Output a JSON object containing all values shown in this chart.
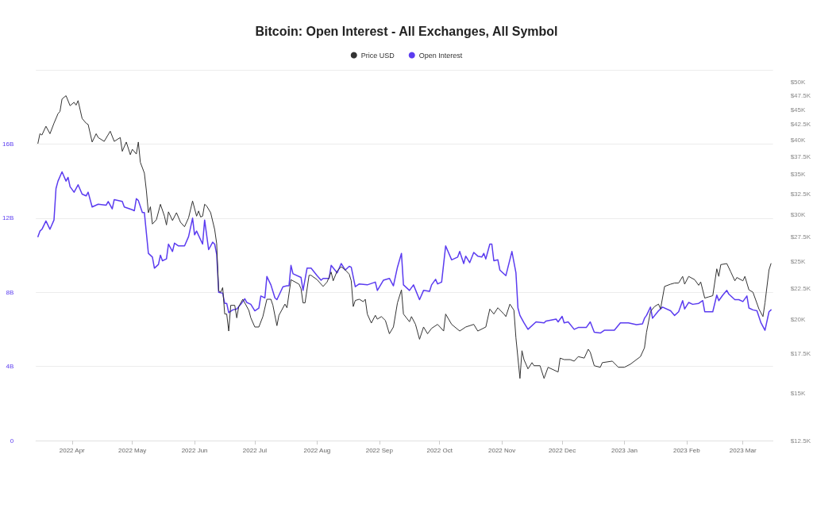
{
  "chart_data": {
    "type": "line",
    "title": "Bitcoin: Open Interest - All Exchanges, All Symbol",
    "legend": "top",
    "grid": "y",
    "log": "y2",
    "marker": "none",
    "line_style": "solid",
    "xlim": [
      "2022-03-14",
      "2023-03-16"
    ],
    "xticks": [
      {
        "value": "2022-04-01",
        "label": "2022 Apr"
      },
      {
        "value": "2022-05-01",
        "label": "2022 May"
      },
      {
        "value": "2022-06-01",
        "label": "2022 Jun"
      },
      {
        "value": "2022-07-01",
        "label": "2022 Jul"
      },
      {
        "value": "2022-08-01",
        "label": "2022 Aug"
      },
      {
        "value": "2022-09-01",
        "label": "2022 Sep"
      },
      {
        "value": "2022-10-01",
        "label": "2022 Oct"
      },
      {
        "value": "2022-11-01",
        "label": "2022 Nov"
      },
      {
        "value": "2022-12-01",
        "label": "2022 Dec"
      },
      {
        "value": "2023-01-01",
        "label": "2023 Jan"
      },
      {
        "value": "2023-02-01",
        "label": "2023 Feb"
      },
      {
        "value": "2023-03-01",
        "label": "2023 Mar"
      }
    ],
    "ylim": [
      0,
      20
    ],
    "yticks": [
      0,
      {
        "value": 4,
        "label": "4B"
      },
      {
        "value": 8,
        "label": "8B"
      },
      {
        "value": 12,
        "label": "12B"
      },
      {
        "value": 16,
        "label": "16B"
      },
      {
        "value": 20,
        "label": null
      }
    ],
    "y2lim": [
      12500,
      52500
    ],
    "y2ticks": [
      {
        "value": 12500,
        "label": "$12.5K"
      },
      {
        "value": 15000,
        "label": "$15K"
      },
      {
        "value": 17500,
        "label": "$17.5K"
      },
      {
        "value": 20000,
        "label": "$20K"
      },
      {
        "value": 22500,
        "label": "$22.5K"
      },
      {
        "value": 25000,
        "label": "$25K"
      },
      {
        "value": 27500,
        "label": "$27.5K"
      },
      {
        "value": 30000,
        "label": "$30K"
      },
      {
        "value": 32500,
        "label": "$32.5K"
      },
      {
        "value": 35000,
        "label": "$35K"
      },
      {
        "value": 37500,
        "label": "$37.5K"
      },
      {
        "value": 40000,
        "label": "$40K"
      },
      {
        "value": 42500,
        "label": "$42.5K"
      },
      {
        "value": 45000,
        "label": "$45K"
      },
      {
        "value": 47500,
        "label": "$47.5K"
      },
      {
        "value": 50000,
        "label": "$50K"
      }
    ],
    "series": [
      {
        "name": "Price USD",
        "color": "#333333",
        "axis": "y2",
        "x": [
          "2022-03-15",
          "2022-03-16",
          "2022-03-17",
          "2022-03-19",
          "2022-03-21",
          "2022-03-23",
          "2022-03-25",
          "2022-03-26",
          "2022-03-27",
          "2022-03-29",
          "2022-03-31",
          "2022-04-02",
          "2022-04-03",
          "2022-04-04",
          "2022-04-06",
          "2022-04-08",
          "2022-04-09",
          "2022-04-11",
          "2022-04-13",
          "2022-04-14",
          "2022-04-17",
          "2022-04-20",
          "2022-04-22",
          "2022-04-25",
          "2022-04-26",
          "2022-04-28",
          "2022-04-30",
          "2022-05-01",
          "2022-05-03",
          "2022-05-04",
          "2022-05-05",
          "2022-05-07",
          "2022-05-08",
          "2022-05-09",
          "2022-05-10",
          "2022-05-11",
          "2022-05-13",
          "2022-05-15",
          "2022-05-17",
          "2022-05-18",
          "2022-05-19",
          "2022-05-21",
          "2022-05-23",
          "2022-05-25",
          "2022-05-27",
          "2022-05-29",
          "2022-05-31",
          "2022-06-02",
          "2022-06-03",
          "2022-06-04",
          "2022-06-05",
          "2022-06-06",
          "2022-06-07",
          "2022-06-09",
          "2022-06-11",
          "2022-06-12",
          "2022-06-13",
          "2022-06-14",
          "2022-06-15",
          "2022-06-16",
          "2022-06-17",
          "2022-06-18",
          "2022-06-19",
          "2022-06-21",
          "2022-06-22",
          "2022-06-23",
          "2022-06-25",
          "2022-06-28",
          "2022-06-29",
          "2022-07-01",
          "2022-07-03",
          "2022-07-05",
          "2022-07-07",
          "2022-07-09",
          "2022-07-10",
          "2022-07-12",
          "2022-07-13",
          "2022-07-16",
          "2022-07-17",
          "2022-07-19",
          "2022-07-23",
          "2022-07-24",
          "2022-07-25",
          "2022-07-26",
          "2022-07-28",
          "2022-07-29",
          "2022-08-01",
          "2022-08-04",
          "2022-08-06",
          "2022-08-08",
          "2022-08-09",
          "2022-08-11",
          "2022-08-13",
          "2022-08-15",
          "2022-08-17",
          "2022-08-18",
          "2022-08-19",
          "2022-08-20",
          "2022-08-22",
          "2022-08-24",
          "2022-08-25",
          "2022-08-26",
          "2022-08-28",
          "2022-08-30",
          "2022-08-31",
          "2022-09-02",
          "2022-09-04",
          "2022-09-06",
          "2022-09-08",
          "2022-09-10",
          "2022-09-12",
          "2022-09-13",
          "2022-09-16",
          "2022-09-17",
          "2022-09-19",
          "2022-09-21",
          "2022-09-23",
          "2022-09-25",
          "2022-09-27",
          "2022-09-30",
          "2022-10-03",
          "2022-10-04",
          "2022-10-07",
          "2022-10-11",
          "2022-10-14",
          "2022-10-18",
          "2022-10-20",
          "2022-10-24",
          "2022-10-26",
          "2022-10-28",
          "2022-10-30",
          "2022-11-02",
          "2022-11-03",
          "2022-11-05",
          "2022-11-07",
          "2022-11-08",
          "2022-11-10",
          "2022-11-11",
          "2022-11-12",
          "2022-11-14",
          "2022-11-16",
          "2022-11-17",
          "2022-11-20",
          "2022-11-22",
          "2022-11-24",
          "2022-11-29",
          "2022-11-30",
          "2022-12-02",
          "2022-12-05",
          "2022-12-07",
          "2022-12-09",
          "2022-12-12",
          "2022-12-14",
          "2022-12-15",
          "2022-12-17",
          "2022-12-20",
          "2022-12-21",
          "2022-12-26",
          "2022-12-29",
          "2023-01-01",
          "2023-01-04",
          "2023-01-06",
          "2023-01-09",
          "2023-01-11",
          "2023-01-12",
          "2023-01-14",
          "2023-01-16",
          "2023-01-18",
          "2023-01-19",
          "2023-01-21",
          "2023-01-24",
          "2023-01-26",
          "2023-01-28",
          "2023-01-30",
          "2023-01-31",
          "2023-02-02",
          "2023-02-05",
          "2023-02-07",
          "2023-02-08",
          "2023-02-10",
          "2023-02-12",
          "2023-02-14",
          "2023-02-16",
          "2023-02-17",
          "2023-02-18",
          "2023-02-21",
          "2023-02-23",
          "2023-02-25",
          "2023-02-26",
          "2023-03-01",
          "2023-03-02",
          "2023-03-04",
          "2023-03-06",
          "2023-03-09",
          "2023-03-11",
          "2023-03-12",
          "2023-03-14",
          "2023-03-15"
        ],
        "values": [
          39500,
          41000,
          40800,
          42200,
          41000,
          42700,
          44300,
          44700,
          46900,
          47500,
          45700,
          46300,
          45800,
          46600,
          43500,
          42700,
          42500,
          39700,
          41000,
          40400,
          39800,
          41400,
          39800,
          40400,
          38300,
          39700,
          37800,
          38600,
          37900,
          39700,
          36700,
          35200,
          32900,
          30200,
          30900,
          28900,
          29400,
          31200,
          29800,
          28800,
          30300,
          29300,
          30200,
          29100,
          28600,
          29600,
          31600,
          29800,
          30400,
          29700,
          29800,
          31200,
          31000,
          30200,
          28300,
          26800,
          22300,
          22200,
          22600,
          20400,
          20400,
          19100,
          21100,
          21100,
          20100,
          21000,
          21600,
          20700,
          20100,
          19400,
          19400,
          20200,
          21600,
          21600,
          21100,
          19500,
          20300,
          21200,
          20900,
          23300,
          22900,
          22500,
          21300,
          21300,
          23700,
          23700,
          23300,
          22700,
          23100,
          24000,
          23200,
          24100,
          24500,
          24200,
          23800,
          23200,
          21000,
          21500,
          21600,
          21400,
          21600,
          20400,
          19700,
          20300,
          20000,
          20200,
          19900,
          18900,
          19400,
          21300,
          22400,
          20400,
          19800,
          20200,
          19600,
          18500,
          19400,
          18900,
          19300,
          19600,
          19100,
          20400,
          19600,
          19100,
          19400,
          19600,
          19100,
          19400,
          20800,
          20400,
          20900,
          20400,
          20200,
          21200,
          20700,
          18600,
          15900,
          17700,
          17100,
          16500,
          16900,
          16700,
          16700,
          15900,
          16600,
          16300,
          17200,
          17100,
          17100,
          17000,
          17300,
          17200,
          17800,
          17600,
          16700,
          16600,
          16900,
          17000,
          16600,
          16600,
          16800,
          17000,
          17300,
          17900,
          19000,
          20600,
          21000,
          21200,
          20800,
          22700,
          22900,
          23000,
          23000,
          23600,
          22900,
          23600,
          23300,
          22800,
          23100,
          21700,
          21800,
          21900,
          24300,
          23600,
          24700,
          24800,
          24000,
          23200,
          23500,
          23200,
          23600,
          22400,
          22200,
          20800,
          20200,
          21300,
          24200,
          24800
        ]
      },
      {
        "name": "Open Interest",
        "color": "#5b3cf0",
        "x": [
          "2022-03-15",
          "2022-03-16",
          "2022-03-17",
          "2022-03-19",
          "2022-03-21",
          "2022-03-23",
          "2022-03-24",
          "2022-03-25",
          "2022-03-27",
          "2022-03-29",
          "2022-03-30",
          "2022-03-31",
          "2022-04-02",
          "2022-04-04",
          "2022-04-06",
          "2022-04-08",
          "2022-04-09",
          "2022-04-11",
          "2022-04-14",
          "2022-04-18",
          "2022-04-19",
          "2022-04-21",
          "2022-04-22",
          "2022-04-26",
          "2022-04-27",
          "2022-05-01",
          "2022-05-02",
          "2022-05-03",
          "2022-05-04",
          "2022-05-06",
          "2022-05-07",
          "2022-05-09",
          "2022-05-11",
          "2022-05-12",
          "2022-05-14",
          "2022-05-15",
          "2022-05-16",
          "2022-05-18",
          "2022-05-19",
          "2022-05-21",
          "2022-05-22",
          "2022-05-24",
          "2022-05-27",
          "2022-05-29",
          "2022-05-31",
          "2022-06-01",
          "2022-06-02",
          "2022-06-05",
          "2022-06-06",
          "2022-06-08",
          "2022-06-10",
          "2022-06-11",
          "2022-06-12",
          "2022-06-13",
          "2022-06-15",
          "2022-06-16",
          "2022-06-17",
          "2022-06-18",
          "2022-06-20",
          "2022-06-22",
          "2022-06-24",
          "2022-06-26",
          "2022-06-27",
          "2022-06-29",
          "2022-07-01",
          "2022-07-03",
          "2022-07-04",
          "2022-07-06",
          "2022-07-07",
          "2022-07-09",
          "2022-07-11",
          "2022-07-12",
          "2022-07-15",
          "2022-07-17",
          "2022-07-18",
          "2022-07-19",
          "2022-07-20",
          "2022-07-24",
          "2022-07-25",
          "2022-07-27",
          "2022-07-29",
          "2022-08-01",
          "2022-08-03",
          "2022-08-04",
          "2022-08-07",
          "2022-08-08",
          "2022-08-11",
          "2022-08-13",
          "2022-08-15",
          "2022-08-17",
          "2022-08-18",
          "2022-08-20",
          "2022-08-22",
          "2022-08-26",
          "2022-08-30",
          "2022-08-31",
          "2022-09-03",
          "2022-09-06",
          "2022-09-08",
          "2022-09-10",
          "2022-09-12",
          "2022-09-13",
          "2022-09-16",
          "2022-09-18",
          "2022-09-21",
          "2022-09-23",
          "2022-09-26",
          "2022-09-27",
          "2022-09-29",
          "2022-09-30",
          "2022-10-02",
          "2022-10-04",
          "2022-10-07",
          "2022-10-10",
          "2022-10-11",
          "2022-10-13",
          "2022-10-14",
          "2022-10-16",
          "2022-10-18",
          "2022-10-20",
          "2022-10-22",
          "2022-10-23",
          "2022-10-24",
          "2022-10-26",
          "2022-10-27",
          "2022-10-28",
          "2022-10-30",
          "2022-10-31",
          "2022-11-03",
          "2022-11-06",
          "2022-11-08",
          "2022-11-09",
          "2022-11-10",
          "2022-11-12",
          "2022-11-14",
          "2022-11-18",
          "2022-11-22",
          "2022-11-23",
          "2022-11-28",
          "2022-11-29",
          "2022-12-01",
          "2022-12-02",
          "2022-12-04",
          "2022-12-07",
          "2022-12-09",
          "2022-12-13",
          "2022-12-15",
          "2022-12-17",
          "2022-12-20",
          "2022-12-22",
          "2022-12-27",
          "2022-12-30",
          "2023-01-03",
          "2023-01-07",
          "2023-01-10",
          "2023-01-11",
          "2023-01-12",
          "2023-01-14",
          "2023-01-15",
          "2023-01-18",
          "2023-01-20",
          "2023-01-24",
          "2023-01-26",
          "2023-01-28",
          "2023-01-30",
          "2023-01-31",
          "2023-02-02",
          "2023-02-04",
          "2023-02-07",
          "2023-02-09",
          "2023-02-10",
          "2023-02-14",
          "2023-02-16",
          "2023-02-17",
          "2023-02-19",
          "2023-02-21",
          "2023-02-22",
          "2023-02-25",
          "2023-02-27",
          "2023-03-01",
          "2023-03-03",
          "2023-03-04",
          "2023-03-06",
          "2023-03-08",
          "2023-03-10",
          "2023-03-12",
          "2023-03-14",
          "2023-03-15"
        ],
        "values": [
          11.0,
          11.3,
          11.4,
          11.85,
          11.4,
          11.9,
          13.6,
          14.0,
          14.5,
          14.0,
          14.2,
          13.7,
          13.4,
          13.8,
          13.3,
          13.2,
          13.4,
          12.6,
          12.75,
          12.7,
          12.9,
          12.5,
          13.0,
          12.9,
          12.6,
          12.45,
          12.4,
          13.05,
          12.95,
          12.3,
          12.3,
          10.1,
          9.9,
          9.3,
          9.5,
          10.0,
          9.7,
          9.8,
          10.6,
          10.2,
          10.65,
          10.5,
          10.5,
          11.0,
          12.0,
          11.1,
          11.3,
          10.6,
          11.9,
          10.3,
          10.7,
          10.6,
          10.05,
          8.0,
          7.95,
          7.4,
          7.4,
          6.9,
          7.05,
          7.1,
          7.35,
          7.65,
          7.45,
          7.35,
          7.0,
          7.15,
          7.8,
          7.7,
          8.85,
          8.4,
          7.7,
          7.6,
          8.3,
          8.35,
          8.35,
          9.45,
          9.0,
          8.8,
          8.1,
          9.3,
          9.3,
          8.9,
          8.65,
          8.75,
          8.75,
          9.45,
          9.05,
          9.55,
          9.2,
          9.4,
          9.35,
          8.3,
          8.45,
          8.4,
          8.55,
          8.1,
          8.65,
          8.75,
          8.35,
          9.35,
          10.1,
          8.4,
          8.1,
          8.4,
          7.6,
          8.1,
          8.05,
          8.4,
          8.7,
          8.45,
          8.55,
          10.5,
          9.75,
          9.9,
          10.2,
          9.55,
          9.95,
          9.6,
          10.15,
          9.95,
          9.9,
          10.1,
          9.8,
          10.6,
          10.6,
          9.7,
          9.75,
          9.2,
          8.9,
          10.2,
          9.05,
          7.15,
          6.75,
          6.35,
          6.0,
          6.4,
          6.35,
          6.45,
          6.55,
          6.4,
          6.7,
          6.35,
          6.4,
          6.0,
          6.1,
          6.1,
          6.4,
          5.85,
          5.8,
          5.95,
          5.95,
          6.35,
          6.35,
          6.25,
          6.3,
          6.6,
          6.75,
          7.2,
          6.6,
          7.0,
          7.2,
          7.0,
          6.75,
          6.95,
          7.55,
          7.1,
          7.45,
          7.35,
          7.4,
          7.55,
          6.95,
          6.95,
          7.85,
          7.55,
          7.85,
          8.1,
          7.9,
          7.6,
          7.6,
          7.5,
          7.8,
          7.15,
          7.05,
          7.0,
          6.35,
          5.95,
          6.95,
          7.05
        ]
      }
    ]
  }
}
